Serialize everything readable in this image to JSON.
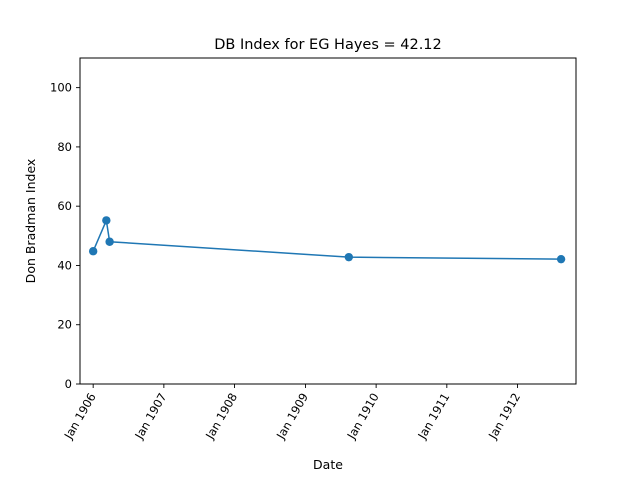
{
  "chart_data": {
    "type": "line",
    "title": "DB Index for EG Hayes = 42.12",
    "xlabel": "Date",
    "ylabel": "Don Bradman Index",
    "xlim": [
      "1905-10-25",
      "1912-10-29"
    ],
    "ylim": [
      0,
      110
    ],
    "x_ticks": [
      "1906-01-01",
      "1907-01-01",
      "1908-01-01",
      "1909-01-01",
      "1910-01-01",
      "1911-01-01",
      "1912-01-01"
    ],
    "x_tick_labels": [
      "Jan 1906",
      "Jan 1907",
      "Jan 1908",
      "Jan 1909",
      "Jan 1910",
      "Jan 1911",
      "Jan 1912"
    ],
    "y_ticks": [
      0,
      20,
      40,
      60,
      80,
      100
    ],
    "y_tick_labels": [
      "0",
      "20",
      "40",
      "60",
      "80",
      "100"
    ],
    "grid": false,
    "series": [
      {
        "color": "#1f77b4",
        "marker": "circle",
        "points": [
          {
            "x": "1906-01-01",
            "y": 44.8
          },
          {
            "x": "1906-03-10",
            "y": 55.2
          },
          {
            "x": "1906-03-27",
            "y": 48.0
          },
          {
            "x": "1909-08-13",
            "y": 42.8
          },
          {
            "x": "1912-08-13",
            "y": 42.12
          }
        ]
      }
    ]
  }
}
